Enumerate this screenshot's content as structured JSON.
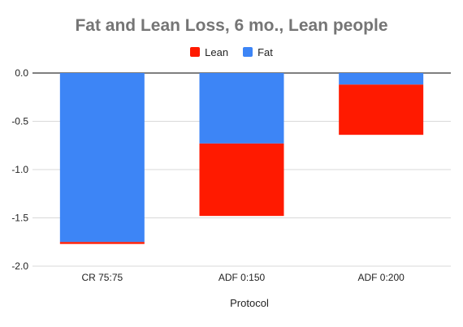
{
  "chart_data": {
    "type": "bar",
    "stacked": true,
    "title": "Fat and Lean Loss, 6 mo., Lean people",
    "xlabel": "Protocol",
    "ylabel": "",
    "categories": [
      "CR 75:75",
      "ADF 0:150",
      "ADF 0:200"
    ],
    "series": [
      {
        "name": "Lean",
        "color": "#ff1a00",
        "values": [
          -0.02,
          -0.75,
          -0.52
        ]
      },
      {
        "name": "Fat",
        "color": "#3d85f6",
        "values": [
          -1.75,
          -0.73,
          -0.12
        ]
      }
    ],
    "stack_order_from_zero": [
      "Fat",
      "Lean"
    ],
    "ylim": [
      -2.0,
      0.0
    ],
    "yticks": [
      "0.0",
      "-0.5",
      "-1.0",
      "-1.5",
      "-2.0"
    ],
    "ytick_values": [
      0.0,
      -0.5,
      -1.0,
      -1.5,
      -2.0
    ],
    "grid": true,
    "legend_position": "top"
  }
}
